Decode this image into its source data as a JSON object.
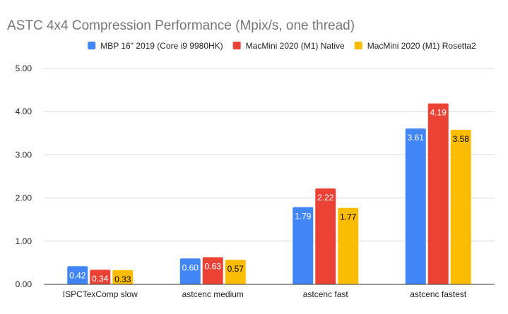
{
  "chart_data": {
    "type": "bar",
    "title": "ASTC 4x4 Compression Performance (Mpix/s, one thread)",
    "xlabel": "",
    "ylabel": "",
    "categories": [
      "ISPCTexComp slow",
      "astcenc medium",
      "astcenc fast",
      "astcenc fastest"
    ],
    "series": [
      {
        "name": "MBP 16\" 2019 (Core i9 9980HK)",
        "color": "#4285F4",
        "label_color": "#ffffff",
        "values": [
          0.42,
          0.6,
          1.79,
          3.61
        ],
        "labels": [
          "0.42",
          "0.60",
          "1.79",
          "3.61"
        ]
      },
      {
        "name": "MacMini 2020 (M1) Native",
        "color": "#EA4335",
        "label_color": "#ffffff",
        "values": [
          0.34,
          0.63,
          2.22,
          4.19
        ],
        "labels": [
          "0.34",
          "0.63",
          "2.22",
          "4.19"
        ]
      },
      {
        "name": "MacMini 2020 (M1) Rosetta2",
        "color": "#FBBC04",
        "label_color": "#000000",
        "values": [
          0.33,
          0.57,
          1.77,
          3.58
        ],
        "labels": [
          "0.33",
          "0.57",
          "1.77",
          "3.58"
        ]
      }
    ],
    "ylim": [
      0,
      5
    ],
    "yticks": [
      0,
      1,
      2,
      3,
      4,
      5
    ],
    "ytick_labels": [
      "0.00",
      "1.00",
      "2.00",
      "3.00",
      "4.00",
      "5.00"
    ],
    "grid": true,
    "legend_position": "top"
  }
}
